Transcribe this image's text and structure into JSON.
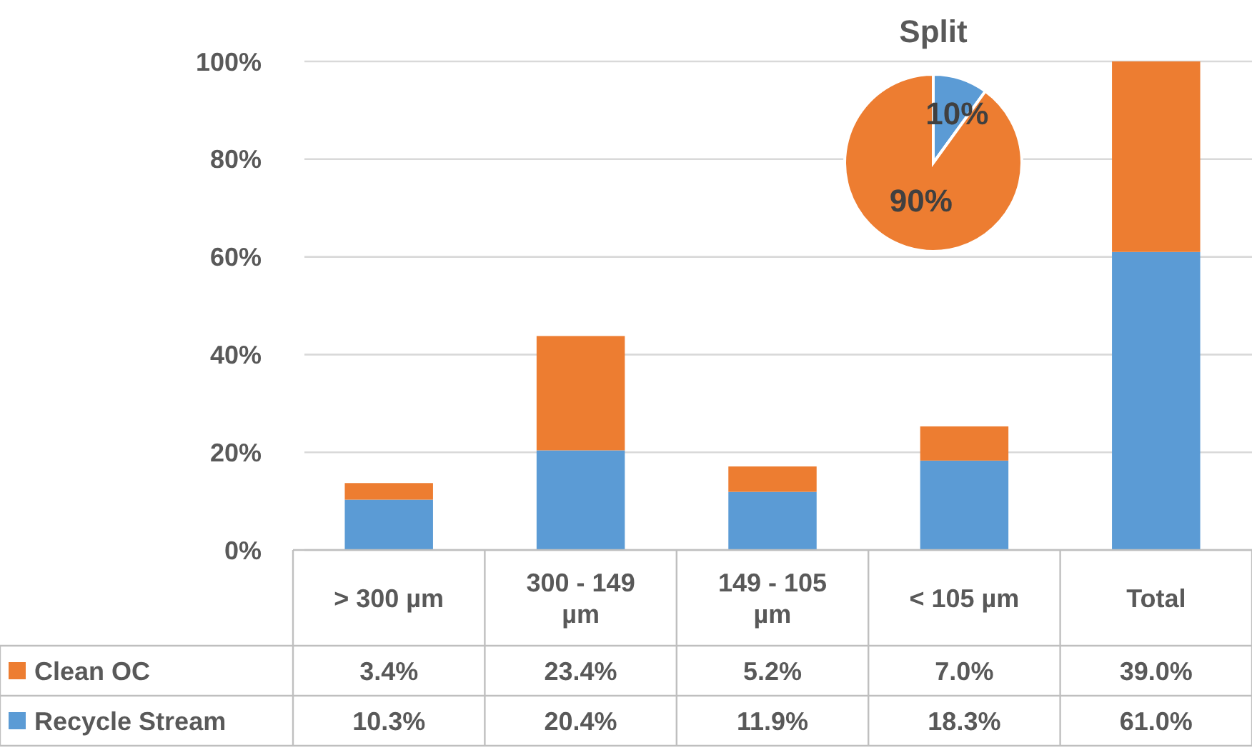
{
  "chart_data": [
    {
      "type": "bar",
      "stacked": true,
      "categories": [
        "> 300 µm",
        "300 - 149 µm",
        "149 - 105 µm",
        "< 105 µm",
        "Total"
      ],
      "series": [
        {
          "name": "Recycle Stream",
          "color": "#5b9bd5",
          "values": [
            10.3,
            20.4,
            11.9,
            18.3,
            61.0
          ],
          "value_labels": [
            "10.3%",
            "20.4%",
            "11.9%",
            "18.3%",
            "61.0%"
          ]
        },
        {
          "name": "Clean OC",
          "color": "#ed7d31",
          "values": [
            3.4,
            23.4,
            5.2,
            7.0,
            39.0
          ],
          "value_labels": [
            "3.4%",
            "23.4%",
            "5.2%",
            "7.0%",
            "39.0%"
          ]
        }
      ],
      "ylim": [
        0,
        100
      ],
      "yticks": [
        {
          "value": 0,
          "label": "0%"
        },
        {
          "value": 20,
          "label": "20%"
        },
        {
          "value": 40,
          "label": "40%"
        },
        {
          "value": 60,
          "label": "60%"
        },
        {
          "value": 80,
          "label": "80%"
        },
        {
          "value": 100,
          "label": "100%"
        }
      ],
      "grid": "y",
      "legend": "bottom"
    },
    {
      "type": "pie",
      "title": "Split",
      "categories": [
        null,
        null
      ],
      "values": [
        10,
        90
      ],
      "colors": [
        "#5b9bd5",
        "#ed7d31"
      ],
      "value_labels": [
        "10%",
        "90%"
      ]
    }
  ]
}
